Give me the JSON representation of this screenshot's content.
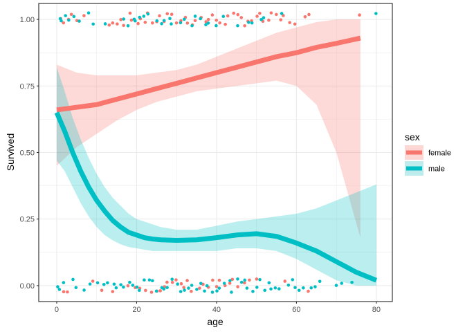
{
  "chart_data": {
    "type": "scatter",
    "xlabel": "age",
    "ylabel": "Survived",
    "xlim": [
      -4.5,
      84
    ],
    "ylim": [
      -0.06,
      1.06
    ],
    "x_ticks": [
      0,
      20,
      40,
      60,
      80
    ],
    "x_tick_labels": [
      "0",
      "20",
      "40",
      "60",
      "80"
    ],
    "y_ticks": [
      0,
      0.25,
      0.5,
      0.75,
      1
    ],
    "y_tick_labels": [
      "0.00",
      "0.25",
      "0.50",
      "0.75",
      "1.00"
    ],
    "grid": true,
    "legend": {
      "title": "sex",
      "position": "right",
      "entries": [
        {
          "label": "female",
          "color": "#F8766D",
          "band_color": "#FDD7D3"
        },
        {
          "label": "male",
          "color": "#00BFC4",
          "band_color": "#BEEBEC"
        }
      ]
    },
    "series": [
      {
        "name": "female",
        "color": "#F8766D",
        "smooth": {
          "x": [
            0,
            5,
            10,
            15,
            20,
            25,
            30,
            35,
            40,
            45,
            50,
            55,
            60,
            65,
            70,
            76
          ],
          "y": [
            0.66,
            0.67,
            0.68,
            0.7,
            0.72,
            0.74,
            0.76,
            0.78,
            0.8,
            0.82,
            0.84,
            0.86,
            0.875,
            0.895,
            0.91,
            0.93
          ],
          "ci_low": [
            0.45,
            0.52,
            0.57,
            0.62,
            0.66,
            0.69,
            0.71,
            0.73,
            0.74,
            0.75,
            0.76,
            0.77,
            0.75,
            0.68,
            0.5,
            0.18
          ],
          "ci_high": [
            0.83,
            0.8,
            0.79,
            0.79,
            0.79,
            0.8,
            0.81,
            0.83,
            0.86,
            0.89,
            0.92,
            0.95,
            0.97,
            0.99,
            1.0,
            1.0
          ]
        },
        "points": [
          [
            1,
            1
          ],
          [
            2,
            1
          ],
          [
            3,
            1
          ],
          [
            4,
            1
          ],
          [
            5,
            1
          ],
          [
            7,
            1
          ],
          [
            13,
            1
          ],
          [
            14,
            1
          ],
          [
            15,
            1
          ],
          [
            16,
            1
          ],
          [
            17,
            1
          ],
          [
            18,
            1
          ],
          [
            19,
            1
          ],
          [
            20,
            1
          ],
          [
            21,
            1
          ],
          [
            22,
            1
          ],
          [
            23,
            1
          ],
          [
            24,
            1
          ],
          [
            25,
            1
          ],
          [
            26,
            1
          ],
          [
            27,
            1
          ],
          [
            28,
            1
          ],
          [
            29,
            1
          ],
          [
            30,
            1
          ],
          [
            31,
            1
          ],
          [
            32,
            1
          ],
          [
            33,
            1
          ],
          [
            34,
            1
          ],
          [
            35,
            1
          ],
          [
            36,
            1
          ],
          [
            37,
            1
          ],
          [
            38,
            1
          ],
          [
            39,
            1
          ],
          [
            40,
            1
          ],
          [
            41,
            1
          ],
          [
            42,
            1
          ],
          [
            43,
            1
          ],
          [
            44,
            1
          ],
          [
            45,
            1
          ],
          [
            46,
            1
          ],
          [
            47,
            1
          ],
          [
            48,
            1
          ],
          [
            49,
            1
          ],
          [
            50,
            1
          ],
          [
            51,
            1
          ],
          [
            52,
            1
          ],
          [
            53,
            1
          ],
          [
            54,
            1
          ],
          [
            55,
            1
          ],
          [
            56,
            1
          ],
          [
            57,
            1
          ],
          [
            58,
            1
          ],
          [
            60,
            1
          ],
          [
            62,
            1
          ],
          [
            63,
            1
          ],
          [
            76,
            1
          ],
          [
            2,
            0
          ],
          [
            3,
            0
          ],
          [
            9,
            0
          ],
          [
            11,
            0
          ],
          [
            14,
            0
          ],
          [
            18,
            0
          ],
          [
            20,
            0
          ],
          [
            21,
            0
          ],
          [
            22,
            0
          ],
          [
            24,
            0
          ],
          [
            25,
            0
          ],
          [
            26,
            0
          ],
          [
            27,
            0
          ],
          [
            28,
            0
          ],
          [
            29,
            0
          ],
          [
            30,
            0
          ],
          [
            31,
            0
          ],
          [
            32,
            0
          ],
          [
            33,
            0
          ],
          [
            34,
            0
          ],
          [
            36,
            0
          ],
          [
            37,
            0
          ],
          [
            38,
            0
          ],
          [
            39,
            0
          ],
          [
            40,
            0
          ],
          [
            41,
            0
          ],
          [
            42,
            0
          ],
          [
            43,
            0
          ],
          [
            44,
            0
          ],
          [
            45,
            0
          ],
          [
            47,
            0
          ],
          [
            48,
            0
          ],
          [
            50,
            0
          ],
          [
            57,
            0
          ],
          [
            63,
            0
          ]
        ]
      },
      {
        "name": "male",
        "color": "#00BFC4",
        "smooth": {
          "x": [
            0,
            2,
            4,
            6,
            8,
            10,
            12,
            14,
            16,
            18,
            20,
            22,
            24,
            26,
            28,
            30,
            35,
            40,
            45,
            50,
            55,
            60,
            65,
            70,
            75,
            80
          ],
          "y": [
            0.65,
            0.58,
            0.5,
            0.43,
            0.37,
            0.32,
            0.28,
            0.245,
            0.22,
            0.2,
            0.19,
            0.18,
            0.175,
            0.172,
            0.171,
            0.17,
            0.172,
            0.18,
            0.19,
            0.195,
            0.185,
            0.16,
            0.13,
            0.09,
            0.05,
            0.02
          ],
          "ci_low": [
            0.47,
            0.43,
            0.37,
            0.31,
            0.26,
            0.22,
            0.19,
            0.17,
            0.155,
            0.145,
            0.14,
            0.135,
            0.13,
            0.13,
            0.13,
            0.13,
            0.13,
            0.13,
            0.14,
            0.14,
            0.13,
            0.1,
            0.06,
            0.02,
            0.0,
            0.0
          ],
          "ci_high": [
            0.82,
            0.73,
            0.63,
            0.55,
            0.48,
            0.42,
            0.37,
            0.33,
            0.3,
            0.27,
            0.25,
            0.24,
            0.23,
            0.22,
            0.215,
            0.21,
            0.21,
            0.225,
            0.24,
            0.25,
            0.26,
            0.27,
            0.29,
            0.32,
            0.35,
            0.38
          ]
        },
        "points": [
          [
            0.5,
            1
          ],
          [
            1,
            1
          ],
          [
            2,
            1
          ],
          [
            3,
            1
          ],
          [
            4,
            1
          ],
          [
            6,
            1
          ],
          [
            8,
            1
          ],
          [
            9,
            1
          ],
          [
            12,
            1
          ],
          [
            17,
            1
          ],
          [
            18,
            1
          ],
          [
            19,
            1
          ],
          [
            20,
            1
          ],
          [
            21,
            1
          ],
          [
            22,
            1
          ],
          [
            23,
            1
          ],
          [
            25,
            1
          ],
          [
            26,
            1
          ],
          [
            27,
            1
          ],
          [
            28,
            1
          ],
          [
            29,
            1
          ],
          [
            31,
            1
          ],
          [
            32,
            1
          ],
          [
            34,
            1
          ],
          [
            35,
            1
          ],
          [
            36,
            1
          ],
          [
            37,
            1
          ],
          [
            38,
            1
          ],
          [
            40,
            1
          ],
          [
            42,
            1
          ],
          [
            45,
            1
          ],
          [
            48,
            1
          ],
          [
            49,
            1
          ],
          [
            51,
            1
          ],
          [
            52,
            1
          ],
          [
            56,
            1
          ],
          [
            80,
            1
          ],
          [
            0,
            0
          ],
          [
            1,
            0
          ],
          [
            2,
            0
          ],
          [
            4,
            0
          ],
          [
            5,
            0
          ],
          [
            7,
            0
          ],
          [
            8,
            0
          ],
          [
            10,
            0
          ],
          [
            12,
            0
          ],
          [
            13,
            0
          ],
          [
            14,
            0
          ],
          [
            15,
            0
          ],
          [
            16,
            0
          ],
          [
            17,
            0
          ],
          [
            18,
            0
          ],
          [
            19,
            0
          ],
          [
            20,
            0
          ],
          [
            21,
            0
          ],
          [
            22,
            0
          ],
          [
            23,
            0
          ],
          [
            24,
            0
          ],
          [
            25,
            0
          ],
          [
            26,
            0
          ],
          [
            27,
            0
          ],
          [
            28,
            0
          ],
          [
            29,
            0
          ],
          [
            30,
            0
          ],
          [
            31,
            0
          ],
          [
            32,
            0
          ],
          [
            33,
            0
          ],
          [
            34,
            0
          ],
          [
            35,
            0
          ],
          [
            36,
            0
          ],
          [
            37,
            0
          ],
          [
            38,
            0
          ],
          [
            39,
            0
          ],
          [
            40,
            0
          ],
          [
            41,
            0
          ],
          [
            42,
            0
          ],
          [
            43,
            0
          ],
          [
            44,
            0
          ],
          [
            45,
            0
          ],
          [
            46,
            0
          ],
          [
            47,
            0
          ],
          [
            48,
            0
          ],
          [
            49,
            0
          ],
          [
            50,
            0
          ],
          [
            51,
            0
          ],
          [
            52,
            0
          ],
          [
            53,
            0
          ],
          [
            54,
            0
          ],
          [
            55,
            0
          ],
          [
            56,
            0
          ],
          [
            58,
            0
          ],
          [
            59,
            0
          ],
          [
            60,
            0
          ],
          [
            61,
            0
          ],
          [
            62,
            0
          ],
          [
            64,
            0
          ],
          [
            65,
            0
          ],
          [
            66,
            0
          ],
          [
            70,
            0
          ],
          [
            71,
            0
          ],
          [
            74,
            0
          ]
        ]
      }
    ]
  }
}
